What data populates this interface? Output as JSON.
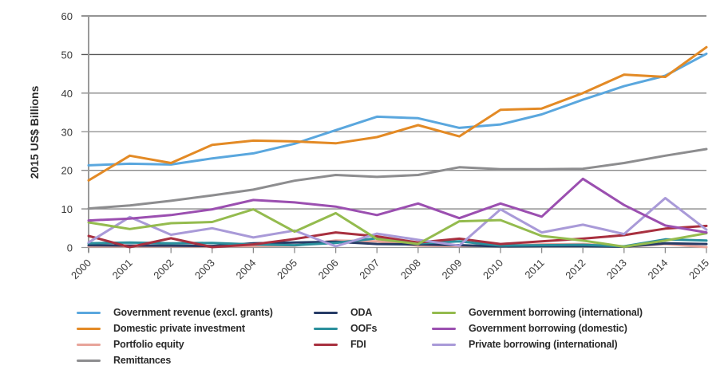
{
  "chart_data": {
    "type": "line",
    "title": "",
    "xlabel": "",
    "ylabel": "2015 US$ Billions",
    "ylim": [
      0,
      60
    ],
    "yticks": [
      "0",
      "10",
      "20",
      "30",
      "40",
      "50",
      "60"
    ],
    "grid": true,
    "legend_position": "bottom",
    "x": [
      "2000",
      "2001",
      "2002",
      "2003",
      "2004",
      "2005",
      "2006",
      "2007",
      "2008",
      "2009",
      "2010",
      "2011",
      "2012",
      "2013",
      "2014",
      "2015"
    ],
    "series": [
      {
        "name": "Government  revenue (excl. grants)",
        "color": "#5aa7de",
        "values": [
          21.3,
          21.7,
          21.5,
          23.1,
          24.4,
          26.9,
          30.4,
          33.9,
          33.5,
          31.0,
          31.9,
          34.5,
          38.3,
          41.8,
          44.5,
          50.2
        ]
      },
      {
        "name": "Domestic private investment",
        "color": "#e38a25",
        "values": [
          17.4,
          23.8,
          21.9,
          26.6,
          27.7,
          27.5,
          27.0,
          28.6,
          31.7,
          28.8,
          35.7,
          36.0,
          40.0,
          44.8,
          44.2,
          51.9
        ]
      },
      {
        "name": "Portfolio equity",
        "color": "#e8a49a",
        "values": [
          0.3,
          0.3,
          0.3,
          0.3,
          0.4,
          0.5,
          1.8,
          1.6,
          0.5,
          0.4,
          0.5,
          0.8,
          0.9,
          0.2,
          0.9,
          0.1
        ]
      },
      {
        "name": "Remittances",
        "color": "#8d8d8f",
        "values": [
          10.1,
          10.9,
          12.1,
          13.5,
          15.0,
          17.3,
          18.8,
          18.3,
          18.8,
          20.8,
          20.3,
          20.3,
          20.4,
          21.9,
          23.8,
          25.5
        ]
      },
      {
        "name": "ODA",
        "color": "#263b66",
        "values": [
          0.6,
          0.5,
          0.5,
          0.4,
          1.1,
          1.3,
          1.5,
          0.9,
          0.8,
          0.6,
          0.3,
          0.4,
          0.4,
          0.2,
          1.1,
          0.9
        ]
      },
      {
        "name": "OOFs",
        "color": "#2a8f9c",
        "values": [
          1.1,
          1.3,
          1.1,
          1.2,
          0.8,
          0.6,
          1.2,
          2.4,
          1.1,
          1.6,
          0.5,
          0.6,
          0.7,
          0.3,
          2.1,
          1.8
        ]
      },
      {
        "name": "FDI",
        "color": "#a8303f",
        "values": [
          3.0,
          0.1,
          2.4,
          0.1,
          0.8,
          2.2,
          3.9,
          2.9,
          1.3,
          2.3,
          0.9,
          1.6,
          2.3,
          3.2,
          4.9,
          5.6
        ]
      },
      {
        "name": "Government borrowing (international)",
        "color": "#94bb4e",
        "values": [
          6.5,
          4.8,
          6.3,
          6.6,
          9.9,
          4.1,
          8.9,
          2.2,
          0.9,
          6.8,
          7.1,
          3.0,
          1.8,
          0.2,
          1.8,
          3.7
        ]
      },
      {
        "name": "Government borrowing (domestic)",
        "color": "#9b4fb0",
        "values": [
          7.0,
          7.5,
          8.4,
          9.9,
          12.3,
          11.7,
          10.6,
          8.4,
          11.4,
          7.6,
          11.4,
          8.0,
          17.8,
          11.0,
          5.7,
          3.9
        ]
      },
      {
        "name": "Private borrowing (international)",
        "color": "#a99ad8",
        "values": [
          1.3,
          7.9,
          3.3,
          5.0,
          2.6,
          4.4,
          0.3,
          3.6,
          2.0,
          0.5,
          9.9,
          3.9,
          5.9,
          3.5,
          12.8,
          4.6
        ]
      }
    ],
    "legend": [
      [
        "Government  revenue (excl. grants)",
        "Domestic private investment",
        "Portfolio equity",
        "Remittances"
      ],
      [
        "ODA",
        "OOFs",
        "FDI"
      ],
      [
        "Government borrowing (international)",
        "Government borrowing (domestic)",
        "Private borrowing (international)"
      ]
    ]
  }
}
